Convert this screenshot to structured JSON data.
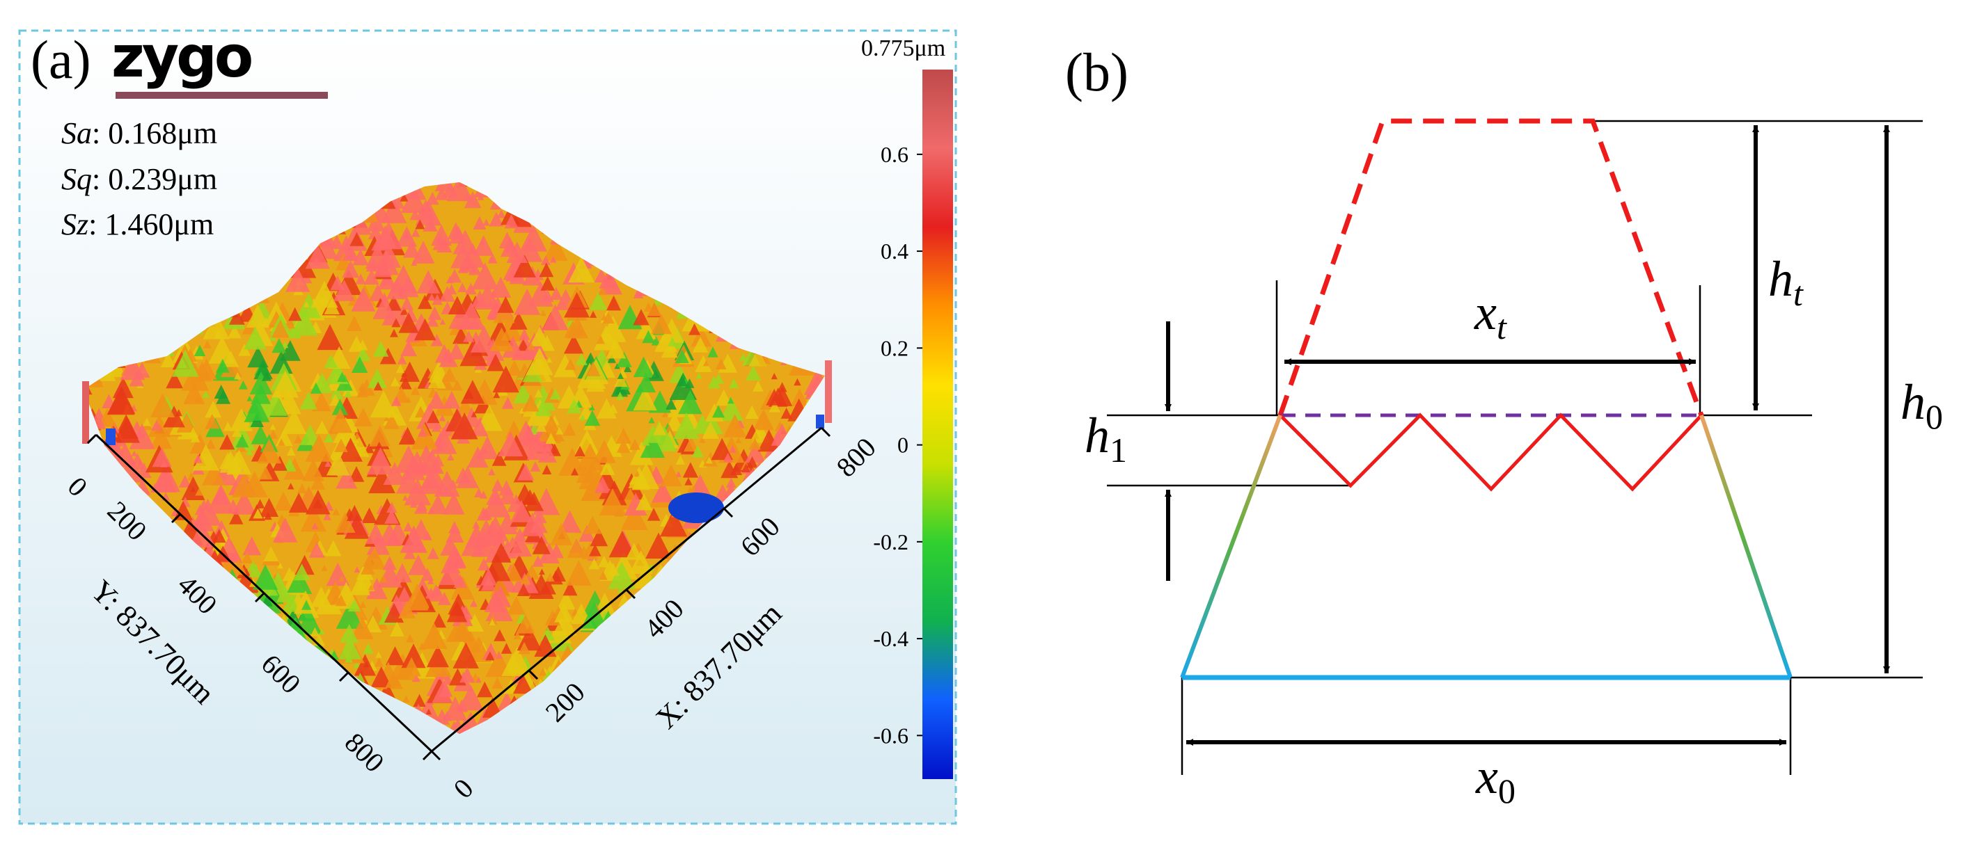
{
  "panel_a": {
    "label": "(a)",
    "logo": "zygo",
    "stats": [
      {
        "name": "Sa",
        "value": ": 0.168μm"
      },
      {
        "name": "Sq",
        "value": ": 0.239μm"
      },
      {
        "name": "Sz",
        "value": ": 1.460μm"
      }
    ],
    "colorbar": {
      "max_label": "0.775μm",
      "ticks": [
        "0.6",
        "0.4",
        "0.2",
        "0",
        "-0.2",
        "-0.4",
        "-0.6"
      ],
      "tick_values": [
        0.6,
        0.4,
        0.2,
        0,
        -0.2,
        -0.4,
        -0.6
      ],
      "min": -0.69,
      "max": 0.775,
      "colors": [
        "#0010c8",
        "#1060ff",
        "#10b050",
        "#30d030",
        "#c8e000",
        "#ffe000",
        "#ff9000",
        "#e62020",
        "#f06a6a",
        "#c04a4a"
      ]
    },
    "y_axis": {
      "title": "Y: 837.70μm",
      "ticks": [
        "0",
        "200",
        "400",
        "600",
        "800"
      ]
    },
    "x_axis": {
      "title": "X: 837.70μm",
      "ticks": [
        "0",
        "200",
        "400",
        "600",
        "800"
      ]
    },
    "surface_colors": [
      "#18a030",
      "#38c830",
      "#9ad820",
      "#e8c810",
      "#f09018",
      "#e83a18",
      "#ff6a6a"
    ]
  },
  "panel_b": {
    "label": "(b)",
    "symbols": {
      "h_t": {
        "base": "h",
        "sub": "t"
      },
      "h_0": {
        "base": "h",
        "sub": "0"
      },
      "h_1": {
        "base": "h",
        "sub": "1"
      },
      "x_t": {
        "base": "x",
        "sub": "t"
      },
      "x_0": {
        "base": "x",
        "sub": "0"
      }
    },
    "colors": {
      "dashed_trapezoid": "#ee1b1b",
      "dashed_line": "#7030a0",
      "zigzag": "#ee1b1b",
      "base_line": "#1aa8e8",
      "arrow": "#000000"
    }
  }
}
